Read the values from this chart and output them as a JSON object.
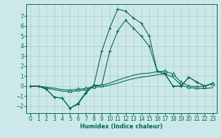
{
  "xlabel": "Humidex (Indice chaleur)",
  "background_color": "#cce8e8",
  "grid_color": "#aacccc",
  "line_color": "#006655",
  "xlim": [
    -0.5,
    23.5
  ],
  "ylim": [
    -2.7,
    8.2
  ],
  "xticks": [
    0,
    1,
    2,
    3,
    4,
    5,
    6,
    7,
    8,
    9,
    10,
    11,
    12,
    13,
    14,
    15,
    16,
    17,
    18,
    19,
    20,
    21,
    22,
    23
  ],
  "yticks": [
    -2,
    -1,
    0,
    1,
    2,
    3,
    4,
    5,
    6,
    7
  ],
  "line1_x": [
    0,
    1,
    2,
    3,
    4,
    5,
    6,
    7,
    8,
    9,
    10,
    11,
    12,
    13,
    14,
    15,
    16,
    17,
    18,
    19,
    20,
    21,
    22,
    23
  ],
  "line1_y": [
    0.0,
    0.0,
    -0.3,
    -1.1,
    -1.2,
    -2.2,
    -1.8,
    -0.7,
    0.1,
    3.5,
    5.8,
    7.7,
    7.5,
    6.8,
    6.3,
    5.0,
    1.5,
    1.2,
    0.0,
    0.0,
    0.9,
    0.4,
    0.0,
    0.3
  ],
  "line2_x": [
    0,
    1,
    2,
    3,
    4,
    5,
    6,
    7,
    8,
    9,
    10,
    11,
    12,
    13,
    14,
    15,
    16,
    17,
    18,
    19,
    20,
    21,
    22,
    23
  ],
  "line2_y": [
    0.0,
    0.0,
    -0.3,
    -1.1,
    -1.2,
    -2.2,
    -1.7,
    -0.6,
    0.1,
    0.1,
    3.5,
    5.5,
    6.6,
    5.8,
    5.0,
    4.0,
    1.5,
    1.2,
    0.0,
    0.0,
    0.9,
    0.4,
    0.0,
    0.25
  ],
  "line3_x": [
    0,
    1,
    2,
    3,
    4,
    5,
    6,
    7,
    8,
    9,
    10,
    11,
    12,
    13,
    14,
    15,
    16,
    17,
    18,
    19,
    20,
    21,
    22,
    23
  ],
  "line3_y": [
    0.0,
    0.0,
    -0.1,
    -0.2,
    -0.35,
    -0.4,
    -0.3,
    -0.25,
    0.0,
    0.1,
    0.3,
    0.6,
    0.85,
    1.1,
    1.25,
    1.3,
    1.45,
    1.5,
    1.2,
    0.4,
    0.0,
    -0.05,
    0.0,
    0.3
  ],
  "line4_x": [
    0,
    1,
    2,
    3,
    4,
    5,
    6,
    7,
    8,
    9,
    10,
    11,
    12,
    13,
    14,
    15,
    16,
    17,
    18,
    19,
    20,
    21,
    22,
    23
  ],
  "line4_y": [
    0.0,
    0.0,
    -0.2,
    -0.35,
    -0.5,
    -0.55,
    -0.45,
    -0.35,
    -0.1,
    -0.05,
    0.1,
    0.3,
    0.55,
    0.75,
    0.9,
    1.0,
    1.15,
    1.2,
    0.9,
    0.1,
    -0.15,
    -0.2,
    -0.25,
    -0.15
  ],
  "tri3_x": [
    5,
    6,
    7,
    8,
    9,
    17,
    18,
    19,
    20,
    21,
    22,
    23
  ]
}
